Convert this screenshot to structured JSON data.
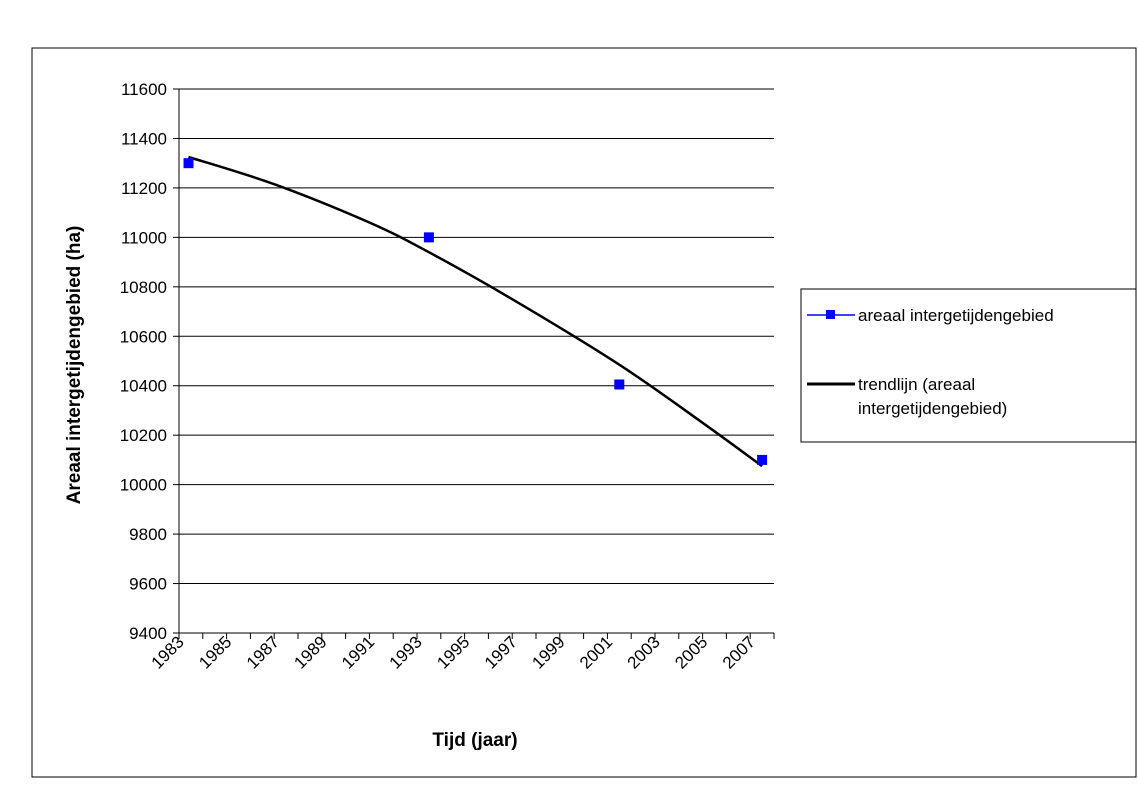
{
  "chart_data": {
    "type": "scatter",
    "title": "",
    "xlabel": "Tijd (jaar)",
    "ylabel": "Areaal intergetijdengebied (ha)",
    "xlim": [
      1983,
      2008
    ],
    "ylim": [
      9400,
      11600
    ],
    "y_ticks": [
      9400,
      9600,
      9800,
      10000,
      10200,
      10400,
      10600,
      10800,
      11000,
      11200,
      11400,
      11600
    ],
    "x_tick_labels": [
      "1983",
      "1985",
      "1987",
      "1989",
      "1991",
      "1993",
      "1995",
      "1997",
      "1999",
      "2001",
      "2003",
      "2005",
      "2007"
    ],
    "grid": "horizontal",
    "legend_position": "right",
    "series": [
      {
        "name": "areaal intergetijdengebied",
        "kind": "markers",
        "color": "#0000ff",
        "points": [
          {
            "x": 1983.4,
            "y": 11300
          },
          {
            "x": 1993.5,
            "y": 11000
          },
          {
            "x": 2001.5,
            "y": 10405
          },
          {
            "x": 2007.5,
            "y": 10100
          }
        ]
      },
      {
        "name": "trendlijn (areaal intergetijdengebied)",
        "legend_lines": [
          "trendlijn (areaal",
          "intergetijdengebied)"
        ],
        "kind": "line",
        "color": "#000000",
        "points": [
          {
            "x": 1983.4,
            "y": 11325
          },
          {
            "x": 1987,
            "y": 11215
          },
          {
            "x": 1991,
            "y": 11060
          },
          {
            "x": 1993.5,
            "y": 10940
          },
          {
            "x": 1997,
            "y": 10750
          },
          {
            "x": 2001.5,
            "y": 10485
          },
          {
            "x": 2005,
            "y": 10250
          },
          {
            "x": 2007.5,
            "y": 10075
          }
        ]
      }
    ]
  }
}
